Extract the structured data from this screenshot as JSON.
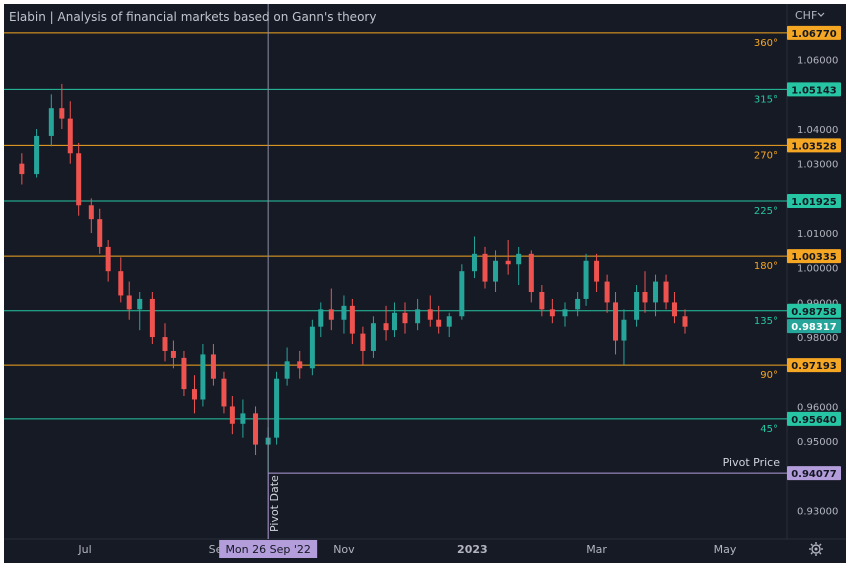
{
  "title": "Elabin | Analysis of financial markets based on Gann's theory",
  "currency_menu": "CHF",
  "chart_data": {
    "type": "candlestick",
    "y_axis_labels": [
      "1.06000",
      "1.04000",
      "1.03000",
      "1.01000",
      "1.00000",
      "0.99000",
      "0.98000",
      "0.96000",
      "0.95000",
      "0.93000"
    ],
    "x_axis_labels": [
      {
        "label": "Jul",
        "date": "2022-07-01",
        "bold": false
      },
      {
        "label": "Se",
        "date": "2022-09-01",
        "bold": false
      },
      {
        "label": "Nov",
        "date": "2022-11-01",
        "bold": false
      },
      {
        "label": "2023",
        "date": "2023-01-01",
        "bold": true
      },
      {
        "label": "Mar",
        "date": "2023-03-01",
        "bold": false
      },
      {
        "label": "May",
        "date": "2023-05-01",
        "bold": false
      }
    ],
    "gann_levels": [
      {
        "angle": "360°",
        "price": "1.06770",
        "value": 1.0677,
        "color": "#f5a623"
      },
      {
        "angle": "315°",
        "price": "1.05143",
        "value": 1.05143,
        "color": "#26c6a4"
      },
      {
        "angle": "270°",
        "price": "1.03528",
        "value": 1.03528,
        "color": "#f5a623"
      },
      {
        "angle": "225°",
        "price": "1.01925",
        "value": 1.01925,
        "color": "#26c6a4"
      },
      {
        "angle": "180°",
        "price": "1.00335",
        "value": 1.00335,
        "color": "#f5a623"
      },
      {
        "angle": "135°",
        "price": "0.98758",
        "value": 0.98758,
        "color": "#26c6a4"
      },
      {
        "angle": "90°",
        "price": "0.97193",
        "value": 0.97193,
        "color": "#f5a623"
      },
      {
        "angle": "45°",
        "price": "0.95640",
        "value": 0.9564,
        "color": "#26c6a4"
      }
    ],
    "pivot_price": {
      "label": "Pivot Price",
      "price": "0.94077",
      "value": 0.94077,
      "color": "#b39ddb"
    },
    "pivot_date": {
      "label": "Pivot Date",
      "date_label": "Mon 26 Sep '22",
      "date": "2022-09-26",
      "color": "#b39ddb"
    },
    "last_price": {
      "price": "0.98317",
      "value": 0.98317,
      "color": "#26a69a"
    },
    "ohlc": [
      {
        "date": "2022-06-01",
        "open": 1.03,
        "high": 1.033,
        "low": 1.024,
        "close": 1.027
      },
      {
        "date": "2022-06-08",
        "open": 1.027,
        "high": 1.04,
        "low": 1.026,
        "close": 1.038
      },
      {
        "date": "2022-06-15",
        "open": 1.038,
        "high": 1.05,
        "low": 1.035,
        "close": 1.046
      },
      {
        "date": "2022-06-20",
        "open": 1.046,
        "high": 1.053,
        "low": 1.04,
        "close": 1.043
      },
      {
        "date": "2022-06-24",
        "open": 1.043,
        "high": 1.048,
        "low": 1.03,
        "close": 1.033
      },
      {
        "date": "2022-06-28",
        "open": 1.033,
        "high": 1.036,
        "low": 1.015,
        "close": 1.018
      },
      {
        "date": "2022-07-04",
        "open": 1.018,
        "high": 1.02,
        "low": 1.01,
        "close": 1.014
      },
      {
        "date": "2022-07-08",
        "open": 1.014,
        "high": 1.017,
        "low": 1.004,
        "close": 1.006
      },
      {
        "date": "2022-07-12",
        "open": 1.006,
        "high": 1.008,
        "low": 0.996,
        "close": 0.999
      },
      {
        "date": "2022-07-18",
        "open": 0.999,
        "high": 1.003,
        "low": 0.99,
        "close": 0.992
      },
      {
        "date": "2022-07-22",
        "open": 0.992,
        "high": 0.996,
        "low": 0.985,
        "close": 0.988
      },
      {
        "date": "2022-07-27",
        "open": 0.988,
        "high": 0.993,
        "low": 0.982,
        "close": 0.991
      },
      {
        "date": "2022-08-02",
        "open": 0.991,
        "high": 0.993,
        "low": 0.978,
        "close": 0.98
      },
      {
        "date": "2022-08-08",
        "open": 0.98,
        "high": 0.984,
        "low": 0.973,
        "close": 0.976
      },
      {
        "date": "2022-08-12",
        "open": 0.976,
        "high": 0.979,
        "low": 0.971,
        "close": 0.974
      },
      {
        "date": "2022-08-17",
        "open": 0.974,
        "high": 0.976,
        "low": 0.963,
        "close": 0.965
      },
      {
        "date": "2022-08-22",
        "open": 0.965,
        "high": 0.969,
        "low": 0.958,
        "close": 0.962
      },
      {
        "date": "2022-08-26",
        "open": 0.962,
        "high": 0.978,
        "low": 0.96,
        "close": 0.975
      },
      {
        "date": "2022-08-31",
        "open": 0.975,
        "high": 0.978,
        "low": 0.966,
        "close": 0.968
      },
      {
        "date": "2022-09-05",
        "open": 0.968,
        "high": 0.97,
        "low": 0.958,
        "close": 0.96
      },
      {
        "date": "2022-09-09",
        "open": 0.96,
        "high": 0.963,
        "low": 0.952,
        "close": 0.955
      },
      {
        "date": "2022-09-14",
        "open": 0.955,
        "high": 0.962,
        "low": 0.951,
        "close": 0.958
      },
      {
        "date": "2022-09-20",
        "open": 0.958,
        "high": 0.96,
        "low": 0.946,
        "close": 0.949
      },
      {
        "date": "2022-09-26",
        "open": 0.949,
        "high": 0.954,
        "low": 0.9408,
        "close": 0.951
      },
      {
        "date": "2022-09-30",
        "open": 0.951,
        "high": 0.97,
        "low": 0.949,
        "close": 0.968
      },
      {
        "date": "2022-10-05",
        "open": 0.968,
        "high": 0.977,
        "low": 0.966,
        "close": 0.973
      },
      {
        "date": "2022-10-11",
        "open": 0.973,
        "high": 0.976,
        "low": 0.968,
        "close": 0.971
      },
      {
        "date": "2022-10-17",
        "open": 0.971,
        "high": 0.985,
        "low": 0.969,
        "close": 0.983
      },
      {
        "date": "2022-10-21",
        "open": 0.983,
        "high": 0.99,
        "low": 0.98,
        "close": 0.988
      },
      {
        "date": "2022-10-26",
        "open": 0.988,
        "high": 0.994,
        "low": 0.982,
        "close": 0.985
      },
      {
        "date": "2022-11-01",
        "open": 0.985,
        "high": 0.992,
        "low": 0.981,
        "close": 0.989
      },
      {
        "date": "2022-11-05",
        "open": 0.989,
        "high": 0.991,
        "low": 0.978,
        "close": 0.981
      },
      {
        "date": "2022-11-10",
        "open": 0.981,
        "high": 0.983,
        "low": 0.972,
        "close": 0.976
      },
      {
        "date": "2022-11-15",
        "open": 0.976,
        "high": 0.986,
        "low": 0.974,
        "close": 0.984
      },
      {
        "date": "2022-11-21",
        "open": 0.984,
        "high": 0.989,
        "low": 0.979,
        "close": 0.982
      },
      {
        "date": "2022-11-25",
        "open": 0.982,
        "high": 0.99,
        "low": 0.98,
        "close": 0.987
      },
      {
        "date": "2022-11-30",
        "open": 0.987,
        "high": 0.99,
        "low": 0.981,
        "close": 0.984
      },
      {
        "date": "2022-12-06",
        "open": 0.984,
        "high": 0.991,
        "low": 0.982,
        "close": 0.988
      },
      {
        "date": "2022-12-12",
        "open": 0.988,
        "high": 0.992,
        "low": 0.983,
        "close": 0.985
      },
      {
        "date": "2022-12-16",
        "open": 0.985,
        "high": 0.989,
        "low": 0.981,
        "close": 0.983
      },
      {
        "date": "2022-12-21",
        "open": 0.983,
        "high": 0.987,
        "low": 0.98,
        "close": 0.986
      },
      {
        "date": "2022-12-27",
        "open": 0.986,
        "high": 1.001,
        "low": 0.985,
        "close": 0.999
      },
      {
        "date": "2023-01-02",
        "open": 0.999,
        "high": 1.009,
        "low": 0.997,
        "close": 1.004
      },
      {
        "date": "2023-01-07",
        "open": 1.004,
        "high": 1.006,
        "low": 0.994,
        "close": 0.996
      },
      {
        "date": "2023-01-12",
        "open": 0.996,
        "high": 1.005,
        "low": 0.993,
        "close": 1.002
      },
      {
        "date": "2023-01-18",
        "open": 1.002,
        "high": 1.008,
        "low": 0.998,
        "close": 1.001
      },
      {
        "date": "2023-01-23",
        "open": 1.001,
        "high": 1.006,
        "low": 0.995,
        "close": 1.004
      },
      {
        "date": "2023-01-29",
        "open": 1.004,
        "high": 1.005,
        "low": 0.99,
        "close": 0.993
      },
      {
        "date": "2023-02-03",
        "open": 0.993,
        "high": 0.995,
        "low": 0.986,
        "close": 0.988
      },
      {
        "date": "2023-02-08",
        "open": 0.988,
        "high": 0.991,
        "low": 0.984,
        "close": 0.986
      },
      {
        "date": "2023-02-14",
        "open": 0.986,
        "high": 0.99,
        "low": 0.983,
        "close": 0.988
      },
      {
        "date": "2023-02-20",
        "open": 0.988,
        "high": 0.993,
        "low": 0.986,
        "close": 0.991
      },
      {
        "date": "2023-02-24",
        "open": 0.991,
        "high": 1.004,
        "low": 0.989,
        "close": 1.002
      },
      {
        "date": "2023-03-01",
        "open": 1.002,
        "high": 1.004,
        "low": 0.993,
        "close": 0.996
      },
      {
        "date": "2023-03-06",
        "open": 0.996,
        "high": 0.998,
        "low": 0.987,
        "close": 0.99
      },
      {
        "date": "2023-03-10",
        "open": 0.99,
        "high": 0.993,
        "low": 0.975,
        "close": 0.979
      },
      {
        "date": "2023-03-14",
        "open": 0.979,
        "high": 0.988,
        "low": 0.972,
        "close": 0.985
      },
      {
        "date": "2023-03-20",
        "open": 0.985,
        "high": 0.995,
        "low": 0.983,
        "close": 0.993
      },
      {
        "date": "2023-03-24",
        "open": 0.993,
        "high": 0.999,
        "low": 0.987,
        "close": 0.99
      },
      {
        "date": "2023-03-29",
        "open": 0.99,
        "high": 0.998,
        "low": 0.986,
        "close": 0.996
      },
      {
        "date": "2023-04-03",
        "open": 0.996,
        "high": 0.998,
        "low": 0.988,
        "close": 0.99
      },
      {
        "date": "2023-04-07",
        "open": 0.99,
        "high": 0.993,
        "low": 0.984,
        "close": 0.986
      },
      {
        "date": "2023-04-12",
        "open": 0.986,
        "high": 0.988,
        "low": 0.981,
        "close": 0.983
      }
    ]
  }
}
